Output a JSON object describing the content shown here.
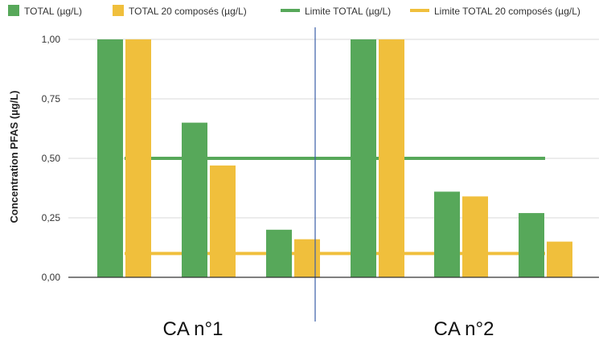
{
  "chart_data": {
    "type": "bar",
    "ylabel": "Concentration PFAS (µg/L)",
    "ylim": [
      0,
      1.0
    ],
    "yticks": [
      "0,00",
      "0,25",
      "0,50",
      "0,75",
      "1,00"
    ],
    "ytick_values": [
      0,
      0.25,
      0.5,
      0.75,
      1.0
    ],
    "grid": true,
    "legend_position": "top",
    "colors": {
      "total": "#57a85a",
      "total20": "#f0bf3c",
      "limit_total": "#57a85a",
      "limit_total20": "#f0bf3c",
      "divider": "#3b5fa8"
    },
    "series": [
      {
        "name": "TOTAL (µg/L)",
        "values": [
          1.0,
          0.65,
          0.2,
          1.0,
          0.36,
          0.27
        ]
      },
      {
        "name": "TOTAL 20 composés (µg/L)",
        "values": [
          1.0,
          0.47,
          0.16,
          1.0,
          0.34,
          0.15
        ]
      }
    ],
    "limits": [
      {
        "name": "Limite TOTAL (µg/L)",
        "value": 0.5
      },
      {
        "name": "Limite TOTAL 20 composés (µg/L)",
        "value": 0.1
      }
    ],
    "groups": [
      "CA n°1",
      "CA n°2"
    ]
  }
}
